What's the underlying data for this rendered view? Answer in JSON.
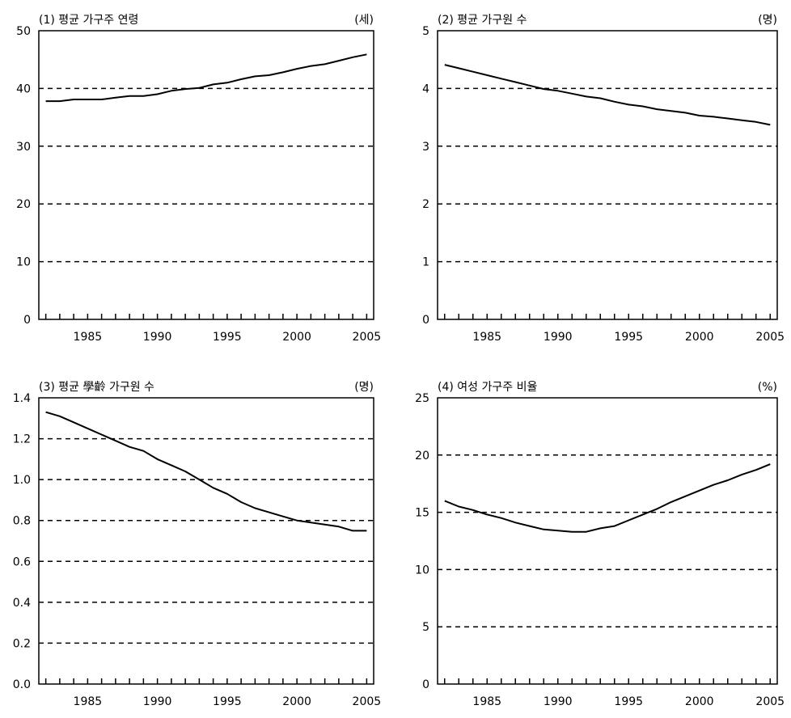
{
  "chart_data": [
    {
      "type": "line",
      "title": "(1) 평균 가구주 연령",
      "unit": "(세)",
      "x": [
        1982,
        1983,
        1984,
        1985,
        1986,
        1987,
        1988,
        1989,
        1990,
        1991,
        1992,
        1993,
        1994,
        1995,
        1996,
        1997,
        1998,
        1999,
        2000,
        2001,
        2002,
        2003,
        2004,
        2005
      ],
      "series": [
        {
          "values": [
            37.8,
            37.8,
            38.1,
            38.1,
            38.1,
            38.4,
            38.7,
            38.7,
            39.0,
            39.6,
            39.9,
            40.1,
            40.7,
            41.0,
            41.6,
            42.1,
            42.3,
            42.8,
            43.4,
            43.9,
            44.2,
            44.8,
            45.4,
            45.9
          ]
        }
      ],
      "xlim": [
        1981.5,
        2005.5
      ],
      "ylim": [
        0,
        50
      ],
      "yticks": [
        0,
        10,
        20,
        30,
        40,
        50
      ],
      "ytick_labels": [
        "0",
        "10",
        "20",
        "30",
        "40",
        "50"
      ],
      "xtick_labels": [
        "1985",
        "1990",
        "1995",
        "2000",
        "2005"
      ],
      "xtick_values": [
        1985,
        1990,
        1995,
        2000,
        2005
      ],
      "grid": "dashed horizontal",
      "legend": "none"
    },
    {
      "type": "line",
      "title": "(2) 평균 가구원 수",
      "unit": "(명)",
      "x": [
        1982,
        1983,
        1984,
        1985,
        1986,
        1987,
        1988,
        1989,
        1990,
        1991,
        1992,
        1993,
        1994,
        1995,
        1996,
        1997,
        1998,
        1999,
        2000,
        2001,
        2002,
        2003,
        2004,
        2005
      ],
      "series": [
        {
          "values": [
            4.41,
            4.35,
            4.29,
            4.23,
            4.17,
            4.11,
            4.05,
            3.99,
            3.96,
            3.91,
            3.86,
            3.83,
            3.77,
            3.72,
            3.69,
            3.64,
            3.61,
            3.58,
            3.53,
            3.51,
            3.48,
            3.45,
            3.42,
            3.37
          ]
        }
      ],
      "xlim": [
        1981.5,
        2005.5
      ],
      "ylim": [
        0,
        5
      ],
      "yticks": [
        0,
        1,
        2,
        3,
        4,
        5
      ],
      "ytick_labels": [
        "0",
        "1",
        "2",
        "3",
        "4",
        "5"
      ],
      "xtick_labels": [
        "1985",
        "1990",
        "1995",
        "2000",
        "2005"
      ],
      "xtick_values": [
        1985,
        1990,
        1995,
        2000,
        2005
      ],
      "grid": "dashed horizontal",
      "legend": "none"
    },
    {
      "type": "line",
      "title": "(3) 평균 學齡 가구원 수",
      "unit": "(명)",
      "x": [
        1982,
        1983,
        1984,
        1985,
        1986,
        1987,
        1988,
        1989,
        1990,
        1991,
        1992,
        1993,
        1994,
        1995,
        1996,
        1997,
        1998,
        1999,
        2000,
        2001,
        2002,
        2003,
        2004,
        2005
      ],
      "series": [
        {
          "values": [
            1.33,
            1.31,
            1.28,
            1.25,
            1.22,
            1.19,
            1.16,
            1.14,
            1.1,
            1.07,
            1.04,
            1.0,
            0.96,
            0.93,
            0.89,
            0.86,
            0.84,
            0.82,
            0.8,
            0.79,
            0.78,
            0.77,
            0.75,
            0.75
          ]
        }
      ],
      "xlim": [
        1981.5,
        2005.5
      ],
      "ylim": [
        0,
        1.4
      ],
      "yticks": [
        0,
        0.2,
        0.4,
        0.6,
        0.8,
        1.0,
        1.2,
        1.4
      ],
      "ytick_labels": [
        "0.0",
        "0.2",
        "0.4",
        "0.6",
        "0.8",
        "1.0",
        "1.2",
        "1.4"
      ],
      "xtick_labels": [
        "1985",
        "1990",
        "1995",
        "2000",
        "2005"
      ],
      "xtick_values": [
        1985,
        1990,
        1995,
        2000,
        2005
      ],
      "grid": "dashed horizontal",
      "legend": "none"
    },
    {
      "type": "line",
      "title": "(4) 여성 가구주 비율",
      "unit": "(%)",
      "x": [
        1982,
        1983,
        1984,
        1985,
        1986,
        1987,
        1988,
        1989,
        1990,
        1991,
        1992,
        1993,
        1994,
        1995,
        1996,
        1997,
        1998,
        1999,
        2000,
        2001,
        2002,
        2003,
        2004,
        2005
      ],
      "series": [
        {
          "values": [
            16.0,
            15.5,
            15.2,
            14.8,
            14.5,
            14.1,
            13.8,
            13.5,
            13.4,
            13.3,
            13.3,
            13.6,
            13.8,
            14.3,
            14.8,
            15.3,
            15.9,
            16.4,
            16.9,
            17.4,
            17.8,
            18.3,
            18.7,
            19.2
          ]
        }
      ],
      "xlim": [
        1981.5,
        2005.5
      ],
      "ylim": [
        0,
        25
      ],
      "yticks": [
        0,
        5,
        10,
        15,
        20,
        25
      ],
      "ytick_labels": [
        "0",
        "5",
        "10",
        "15",
        "20",
        "25"
      ],
      "xtick_labels": [
        "1985",
        "1990",
        "1995",
        "2000",
        "2005"
      ],
      "xtick_values": [
        1985,
        1990,
        1995,
        2000,
        2005
      ],
      "grid": "dashed horizontal",
      "legend": "none"
    }
  ]
}
